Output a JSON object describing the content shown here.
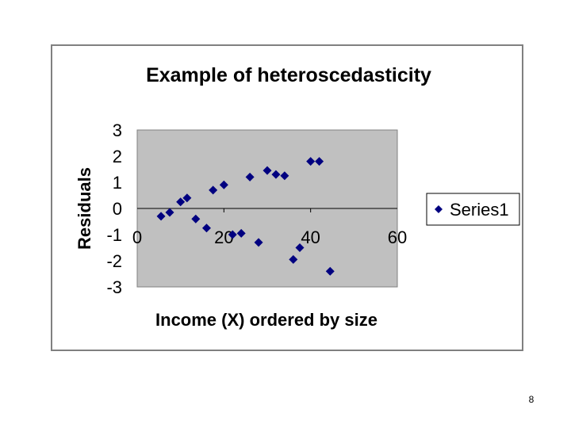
{
  "chart_data": {
    "type": "scatter",
    "title": "Example of heteroscedasticity",
    "xlabel": "Income (X) ordered by size",
    "ylabel": "Residuals",
    "xlim": [
      0,
      60
    ],
    "ylim": [
      -3,
      3
    ],
    "x_ticks": [
      "0",
      "20",
      "40",
      "60"
    ],
    "y_ticks": [
      "3",
      "2",
      "1",
      "0",
      "-1",
      "-2",
      "-3"
    ],
    "grid": "horizontal at y=0, vertical at x=20 and x=40",
    "legend_position": "right",
    "series": [
      {
        "name": "Series1",
        "color": "#000080",
        "marker": "diamond",
        "points": [
          {
            "x": 5.5,
            "y": -0.3
          },
          {
            "x": 7.5,
            "y": -0.15
          },
          {
            "x": 10,
            "y": 0.25
          },
          {
            "x": 11.5,
            "y": 0.4
          },
          {
            "x": 13.5,
            "y": -0.4
          },
          {
            "x": 16,
            "y": -0.75
          },
          {
            "x": 17.5,
            "y": 0.7
          },
          {
            "x": 20,
            "y": 0.9
          },
          {
            "x": 22,
            "y": -1.0
          },
          {
            "x": 24,
            "y": -0.95
          },
          {
            "x": 26,
            "y": 1.2
          },
          {
            "x": 28,
            "y": -1.3
          },
          {
            "x": 30,
            "y": 1.45
          },
          {
            "x": 32,
            "y": 1.3
          },
          {
            "x": 34,
            "y": 1.25
          },
          {
            "x": 36,
            "y": -1.95
          },
          {
            "x": 37.5,
            "y": -1.5
          },
          {
            "x": 40,
            "y": 1.8
          },
          {
            "x": 42,
            "y": 1.8
          },
          {
            "x": 44.5,
            "y": -2.4
          }
        ]
      }
    ]
  },
  "footer": {
    "page_number": "8"
  },
  "colors": {
    "plot_background": "#c0c0c0",
    "marker": "#000080"
  }
}
